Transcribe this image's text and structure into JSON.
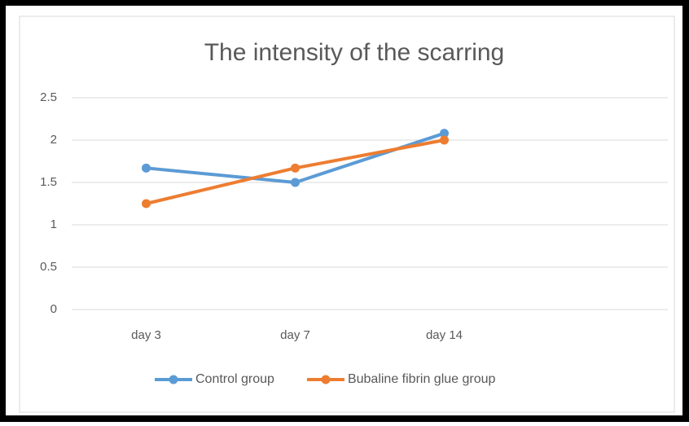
{
  "chart_data": {
    "type": "line",
    "title": "The intensity of the scarring",
    "categories": [
      "day 3",
      "day 7",
      "day 14",
      null
    ],
    "series": [
      {
        "name": "Control group",
        "color": "#5b9bd5",
        "values": [
          1.67,
          1.5,
          2.08,
          null
        ]
      },
      {
        "name": "Bubaline fibrin glue group",
        "color": "#ed7d31",
        "values": [
          1.25,
          1.67,
          2.0,
          null
        ]
      }
    ],
    "ylim": [
      0,
      2.5
    ],
    "yticks": [
      0,
      0.5,
      1,
      1.5,
      2,
      2.5
    ],
    "grid": true,
    "legend": "bottom"
  }
}
